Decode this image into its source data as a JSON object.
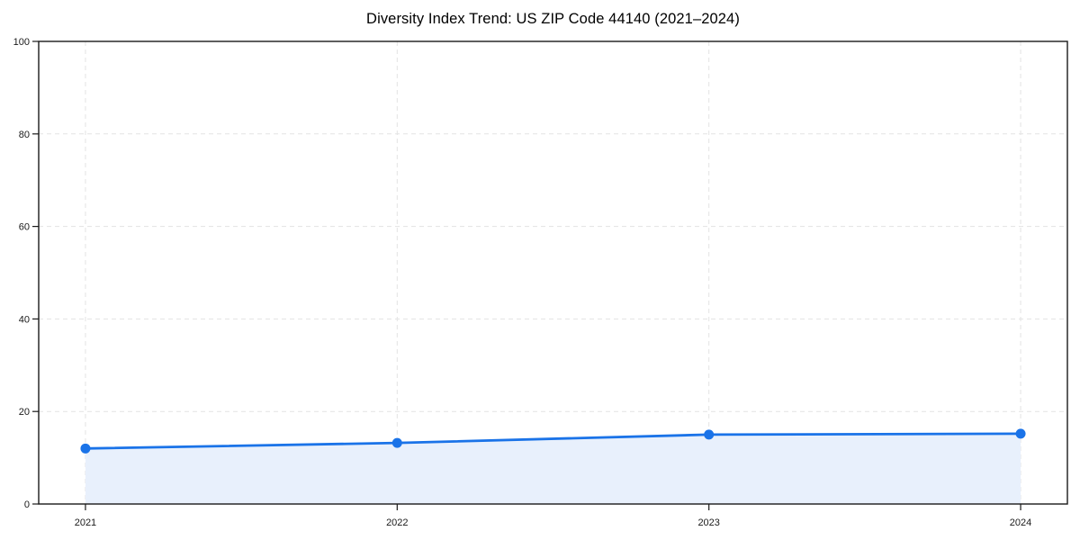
{
  "chart_data": {
    "type": "area",
    "title": "Diversity Index Trend: US ZIP Code 44140 (2021–2024)",
    "series_name": "Diversity Index",
    "x": [
      2021,
      2022,
      2023,
      2024
    ],
    "x_tick_labels": [
      "2021",
      "2022",
      "2023",
      "2024"
    ],
    "values": [
      12,
      13.2,
      15,
      15.2
    ],
    "xlabel": "",
    "ylabel": "",
    "xlim": [
      2020.85,
      2024.15
    ],
    "ylim": [
      0,
      100
    ],
    "yticks": [
      0,
      20,
      40,
      60,
      80,
      100
    ],
    "y_tick_labels": [
      "0",
      "20",
      "40",
      "60",
      "80",
      "100"
    ],
    "grid": true,
    "grid_style": "dashed",
    "legend": false,
    "marker": "circle",
    "colors": {
      "line": "#1a73e8",
      "marker": "#1a73e8",
      "fill": "#e8f0fc",
      "grid": "#e3e3e3",
      "spine": "#1a1a1a",
      "tick": "#1a1a1a",
      "tick_label": "#1a1a1a",
      "title": "#000000",
      "background": "#ffffff"
    }
  }
}
